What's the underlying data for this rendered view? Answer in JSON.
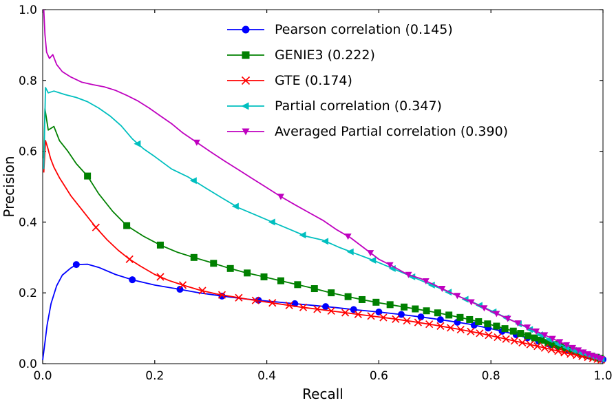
{
  "figure": {
    "background": "#ffffff"
  },
  "chart_data": {
    "type": "line",
    "title": "",
    "xlabel": "Recall",
    "ylabel": "Precision",
    "xlim": [
      0.0,
      1.0
    ],
    "ylim": [
      0.0,
      1.0
    ],
    "xticks": [
      0.0,
      0.2,
      0.4,
      0.6,
      0.8,
      1.0
    ],
    "yticks": [
      0.0,
      0.2,
      0.4,
      0.6,
      0.8,
      1.0
    ],
    "grid": false,
    "legend_position": "upper center",
    "series": [
      {
        "id": "pearson",
        "name": "Pearson correlation (0.145)",
        "score": 0.145,
        "color": "#0000ff",
        "marker": "circle",
        "x": [
          0.0,
          0.004,
          0.008,
          0.015,
          0.025,
          0.035,
          0.05,
          0.06,
          0.08,
          0.1,
          0.13,
          0.16,
          0.2,
          0.245,
          0.28,
          0.32,
          0.36,
          0.4,
          0.44,
          0.48,
          0.52,
          0.56,
          0.6,
          0.64,
          0.68,
          0.72,
          0.76,
          0.8,
          0.84,
          0.88,
          0.92,
          0.96,
          1.0
        ],
        "y": [
          0.01,
          0.06,
          0.11,
          0.17,
          0.22,
          0.25,
          0.27,
          0.28,
          0.281,
          0.272,
          0.252,
          0.237,
          0.222,
          0.21,
          0.2,
          0.191,
          0.183,
          0.177,
          0.171,
          0.165,
          0.159,
          0.152,
          0.146,
          0.139,
          0.131,
          0.122,
          0.112,
          0.099,
          0.084,
          0.066,
          0.047,
          0.028,
          0.012
        ],
        "marker_x": [
          0.06,
          0.16,
          0.245,
          0.32,
          0.385,
          0.45,
          0.505,
          0.555,
          0.6,
          0.64,
          0.675,
          0.71,
          0.74,
          0.77,
          0.795,
          0.82,
          0.845,
          0.865,
          0.885,
          0.905,
          0.92,
          0.935,
          0.95,
          0.962,
          0.974,
          0.984,
          0.993,
          1.0
        ]
      },
      {
        "id": "genie3",
        "name": "GENIE3 (0.222)",
        "score": 0.222,
        "color": "#008000",
        "marker": "square",
        "x": [
          0.002,
          0.004,
          0.01,
          0.02,
          0.03,
          0.045,
          0.06,
          0.08,
          0.1,
          0.125,
          0.15,
          0.18,
          0.21,
          0.24,
          0.27,
          0.3,
          0.33,
          0.36,
          0.39,
          0.42,
          0.45,
          0.48,
          0.51,
          0.54,
          0.57,
          0.6,
          0.63,
          0.66,
          0.69,
          0.72,
          0.75,
          0.78,
          0.81,
          0.84,
          0.87,
          0.9,
          0.93,
          0.96,
          1.0
        ],
        "y": [
          0.58,
          0.72,
          0.66,
          0.67,
          0.63,
          0.6,
          0.565,
          0.53,
          0.48,
          0.43,
          0.39,
          0.36,
          0.335,
          0.315,
          0.3,
          0.286,
          0.271,
          0.258,
          0.247,
          0.236,
          0.225,
          0.214,
          0.202,
          0.191,
          0.181,
          0.172,
          0.164,
          0.156,
          0.148,
          0.139,
          0.129,
          0.118,
          0.106,
          0.092,
          0.077,
          0.061,
          0.045,
          0.03,
          0.013
        ],
        "marker_x": [
          0.08,
          0.15,
          0.21,
          0.27,
          0.305,
          0.335,
          0.365,
          0.395,
          0.425,
          0.455,
          0.485,
          0.515,
          0.545,
          0.57,
          0.595,
          0.62,
          0.645,
          0.665,
          0.685,
          0.705,
          0.725,
          0.745,
          0.762,
          0.778,
          0.794,
          0.81,
          0.825,
          0.84,
          0.853,
          0.866,
          0.878,
          0.89,
          0.902,
          0.913,
          0.924,
          0.934,
          0.944,
          0.954,
          0.963,
          0.972,
          0.98,
          0.988,
          0.995
        ]
      },
      {
        "id": "gte",
        "name": "GTE (0.174)",
        "score": 0.174,
        "color": "#ff0000",
        "marker": "x",
        "x": [
          0.002,
          0.005,
          0.009,
          0.014,
          0.02,
          0.03,
          0.04,
          0.05,
          0.065,
          0.08,
          0.095,
          0.115,
          0.135,
          0.155,
          0.175,
          0.2,
          0.225,
          0.25,
          0.28,
          0.31,
          0.34,
          0.37,
          0.4,
          0.43,
          0.46,
          0.5,
          0.54,
          0.58,
          0.62,
          0.66,
          0.7,
          0.74,
          0.78,
          0.82,
          0.86,
          0.9,
          0.94,
          1.0
        ],
        "y": [
          0.54,
          0.63,
          0.61,
          0.58,
          0.555,
          0.525,
          0.5,
          0.475,
          0.445,
          0.415,
          0.385,
          0.35,
          0.32,
          0.295,
          0.275,
          0.252,
          0.235,
          0.222,
          0.208,
          0.197,
          0.189,
          0.181,
          0.174,
          0.167,
          0.16,
          0.152,
          0.144,
          0.136,
          0.128,
          0.119,
          0.109,
          0.098,
          0.086,
          0.072,
          0.058,
          0.043,
          0.028,
          0.01
        ],
        "marker_x": [
          0.095,
          0.155,
          0.21,
          0.25,
          0.285,
          0.32,
          0.35,
          0.38,
          0.41,
          0.44,
          0.465,
          0.49,
          0.515,
          0.54,
          0.563,
          0.586,
          0.608,
          0.63,
          0.65,
          0.67,
          0.69,
          0.71,
          0.728,
          0.746,
          0.764,
          0.78,
          0.796,
          0.812,
          0.827,
          0.842,
          0.856,
          0.87,
          0.883,
          0.896,
          0.908,
          0.92,
          0.931,
          0.942,
          0.953,
          0.963,
          0.973,
          0.982,
          0.99,
          0.997
        ]
      },
      {
        "id": "partial",
        "name": "Partial correlation (0.347)",
        "score": 0.347,
        "color": "#00bfbf",
        "marker": "triangle-left",
        "x": [
          0.002,
          0.005,
          0.01,
          0.02,
          0.04,
          0.06,
          0.08,
          0.1,
          0.12,
          0.14,
          0.16,
          0.18,
          0.2,
          0.23,
          0.26,
          0.29,
          0.32,
          0.35,
          0.38,
          0.41,
          0.44,
          0.47,
          0.5,
          0.53,
          0.56,
          0.59,
          0.62,
          0.65,
          0.68,
          0.71,
          0.74,
          0.77,
          0.8,
          0.83,
          0.86,
          0.89,
          0.92,
          0.95,
          1.0
        ],
        "y": [
          0.55,
          0.78,
          0.765,
          0.77,
          0.76,
          0.752,
          0.74,
          0.722,
          0.7,
          0.672,
          0.635,
          0.607,
          0.585,
          0.55,
          0.527,
          0.497,
          0.468,
          0.44,
          0.42,
          0.4,
          0.38,
          0.36,
          0.349,
          0.328,
          0.31,
          0.292,
          0.272,
          0.252,
          0.232,
          0.212,
          0.192,
          0.172,
          0.15,
          0.128,
          0.105,
          0.08,
          0.056,
          0.036,
          0.012
        ],
        "marker_x": [
          0.17,
          0.27,
          0.345,
          0.41,
          0.465,
          0.505,
          0.55,
          0.59,
          0.625,
          0.66,
          0.695,
          0.725,
          0.755,
          0.78,
          0.805,
          0.828,
          0.85,
          0.87,
          0.888,
          0.905,
          0.92,
          0.935,
          0.948,
          0.96,
          0.971,
          0.981,
          0.99,
          0.998
        ]
      },
      {
        "id": "avg-partial",
        "name": "Averaged Partial correlation (0.390)",
        "score": 0.39,
        "color": "#bf00bf",
        "marker": "triangle-down",
        "x": [
          0.002,
          0.004,
          0.007,
          0.012,
          0.018,
          0.025,
          0.035,
          0.05,
          0.07,
          0.09,
          0.11,
          0.13,
          0.15,
          0.17,
          0.19,
          0.21,
          0.23,
          0.25,
          0.275,
          0.3,
          0.325,
          0.35,
          0.375,
          0.4,
          0.425,
          0.45,
          0.475,
          0.5,
          0.525,
          0.55,
          0.575,
          0.6,
          0.625,
          0.65,
          0.675,
          0.7,
          0.725,
          0.75,
          0.775,
          0.8,
          0.825,
          0.85,
          0.875,
          0.9,
          0.925,
          0.95,
          0.975,
          1.0
        ],
        "y": [
          1.0,
          0.93,
          0.88,
          0.862,
          0.873,
          0.845,
          0.825,
          0.81,
          0.795,
          0.788,
          0.782,
          0.772,
          0.758,
          0.742,
          0.722,
          0.7,
          0.678,
          0.652,
          0.625,
          0.598,
          0.572,
          0.547,
          0.522,
          0.497,
          0.472,
          0.449,
          0.427,
          0.405,
          0.378,
          0.355,
          0.325,
          0.295,
          0.275,
          0.253,
          0.24,
          0.222,
          0.203,
          0.185,
          0.167,
          0.148,
          0.131,
          0.113,
          0.096,
          0.078,
          0.06,
          0.042,
          0.026,
          0.012
        ],
        "marker_x": [
          0.275,
          0.425,
          0.545,
          0.585,
          0.62,
          0.653,
          0.684,
          0.713,
          0.74,
          0.765,
          0.788,
          0.81,
          0.83,
          0.848,
          0.865,
          0.881,
          0.896,
          0.91,
          0.923,
          0.935,
          0.946,
          0.956,
          0.965,
          0.973,
          0.98,
          0.986,
          0.992,
          0.997
        ]
      }
    ]
  }
}
